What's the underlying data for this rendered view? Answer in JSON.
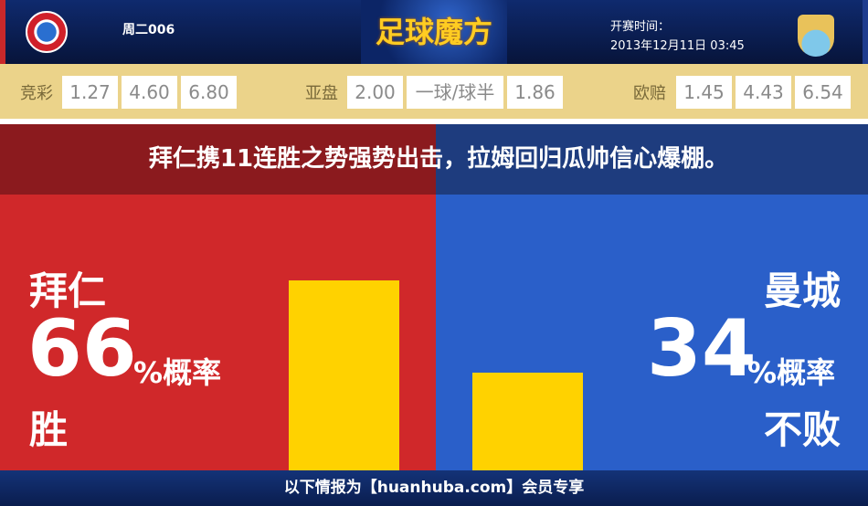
{
  "header": {
    "match_no": "周二006",
    "logo_text": "足球魔方",
    "kickoff_label": "开赛时间：",
    "kickoff_time": "2013年12月11日 03:45"
  },
  "odds": {
    "jingcai": {
      "label": "竞彩",
      "values": [
        "1.27",
        "4.60",
        "6.80"
      ]
    },
    "yapan": {
      "label": "亚盘",
      "values": [
        "2.00",
        "一球/球半",
        "1.86"
      ]
    },
    "oupei": {
      "label": "欧赔",
      "values": [
        "1.45",
        "4.43",
        "6.54"
      ]
    }
  },
  "headline": "拜仁携11连胜之势强势出击，拉姆回归瓜帅信心爆棚。",
  "home": {
    "team": "拜仁",
    "percent": "66",
    "suffix": "%概率",
    "outcome": "胜",
    "color": "#d0282a"
  },
  "away": {
    "team": "曼城",
    "percent": "34",
    "suffix": "%概率",
    "outcome": "不败",
    "color": "#2a5fc9"
  },
  "chart_data": {
    "type": "bar",
    "categories": [
      "拜仁 胜",
      "曼城 不败"
    ],
    "values": [
      66,
      34
    ],
    "ylim": [
      0,
      100
    ],
    "bar_color": "#ffd200"
  },
  "footer": "以下情报为【huanhuba.com】会员专享"
}
